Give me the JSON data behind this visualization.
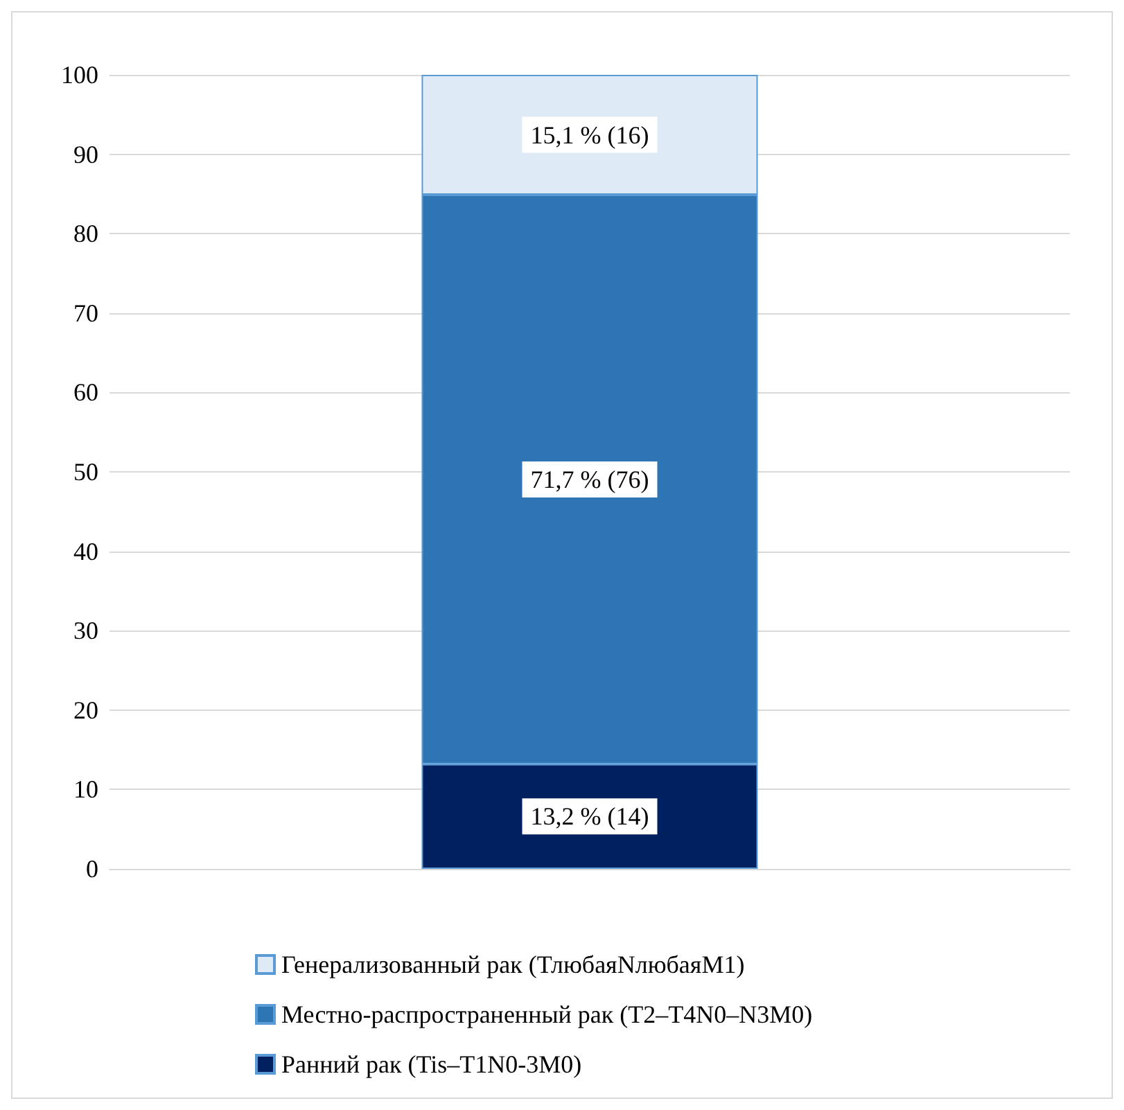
{
  "chart_data": {
    "type": "bar",
    "stacked": true,
    "categories": [
      null
    ],
    "series": [
      {
        "name": "Ранний рак (Tis–T1N0-3M0)",
        "color": "#002060",
        "values": [
          13.2
        ],
        "value_labels": [
          "13,2 % (14)"
        ]
      },
      {
        "name": "Местно-распространенный рак (T2–T4N0–N3M0)",
        "color": "#2e75b6",
        "values": [
          71.7
        ],
        "value_labels": [
          "71,7 % (76)"
        ]
      },
      {
        "name": "Генерализованный рак (ТлюбаяNлюбаяМ1)",
        "color": "#deebf7",
        "values": [
          15.1
        ],
        "value_labels": [
          "15,1 % (16)"
        ]
      }
    ],
    "ylim": [
      0,
      100
    ],
    "yticks": [
      0,
      10,
      20,
      30,
      40,
      50,
      60,
      70,
      80,
      90,
      100
    ],
    "grid": "y",
    "legend": "bottom"
  }
}
